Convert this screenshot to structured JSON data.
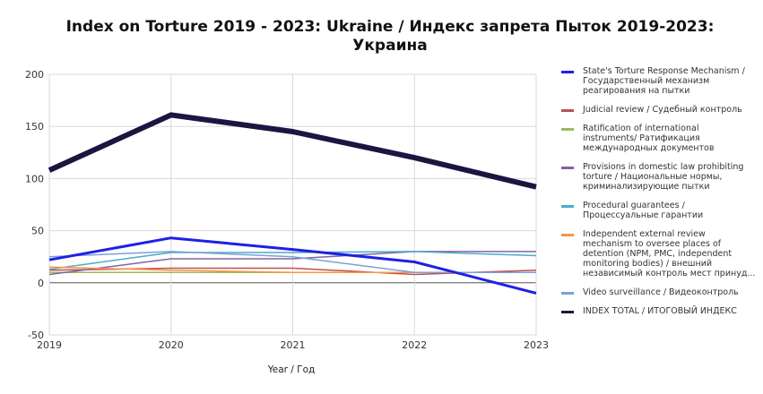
{
  "chart_data": {
    "type": "line",
    "title_lines": [
      "Index on Torture 2019 - 2023: Ukraine / Индекс запрета Пыток 2019-2023:",
      "Украина"
    ],
    "xlabel": "Year / Год",
    "ylabel": "",
    "x": [
      2019,
      2020,
      2021,
      2022,
      2023
    ],
    "xlim": [
      2019,
      2023
    ],
    "ylim": [
      -50,
      200
    ],
    "yticks": [
      -50,
      0,
      50,
      100,
      150,
      200
    ],
    "grid": true,
    "legend_position": "right",
    "series": [
      {
        "name": "State's Torture Response Mechanism / Государственный механизм реагирования на пытки",
        "legend_text": "State's Torture Response Mechanism /\nГосударственный механизм\nреагирования на пытки",
        "color": "#1f1fe6",
        "width": 3,
        "values": [
          22,
          43,
          32,
          20,
          -10
        ]
      },
      {
        "name": "Judicial review / Судебный контроль",
        "legend_text": "Judicial review / Судебный контроль",
        "color": "#c0504d",
        "width": 1.5,
        "values": [
          12,
          14,
          14,
          8,
          12
        ]
      },
      {
        "name": "Ratification of international instruments/ Ратификация международных документов",
        "legend_text": "Ratification of international\ninstruments/ Ратификация\nмеждународных документов",
        "color": "#9bbb59",
        "width": 1.5,
        "values": [
          10,
          10,
          10,
          10,
          10
        ]
      },
      {
        "name": "Provisions in domestic law prohibiting torture / Национальные нормы, криминализирующие пытки",
        "legend_text": "Provisions in domestic law prohibiting\ntorture / Национальные нормы,\nкриминализирующие пытки",
        "color": "#8064a2",
        "width": 1.5,
        "values": [
          8,
          23,
          23,
          30,
          30
        ]
      },
      {
        "name": "Procedural guarantees / Процессуальные гарантии",
        "legend_text": "Procedural guarantees /\nПроцессуальные гарантии",
        "color": "#4bacc6",
        "width": 1.5,
        "values": [
          13,
          29,
          29,
          30,
          26
        ]
      },
      {
        "name": "Independent external review mechanism to oversee places of detention (NPM, PMC, independent monitoring bodies) / внешний независимый контроль мест принуд...",
        "legend_text": "Independent external review\nmechanism to oversee places of\ndetention (NPM, PMC, independent\nmonitoring bodies) / внешний\nнезависимый контроль мест принуд...",
        "color": "#f79646",
        "width": 1.5,
        "values": [
          15,
          12,
          10,
          10,
          10
        ]
      },
      {
        "name": "Video surveillance / Видеоконтроль",
        "legend_text": "Video surveillance / Видеоконтроль",
        "color": "#7ba0d4",
        "width": 1.5,
        "values": [
          25,
          30,
          25,
          10,
          10
        ]
      },
      {
        "name": "INDEX TOTAL / ИТОГОВЫЙ ИНДЕКС",
        "legend_text": "INDEX TOTAL /  ИТОГОВЫЙ ИНДЕКС",
        "color": "#1b1640",
        "width": 6,
        "values": [
          108,
          161,
          145,
          120,
          92
        ]
      }
    ]
  }
}
